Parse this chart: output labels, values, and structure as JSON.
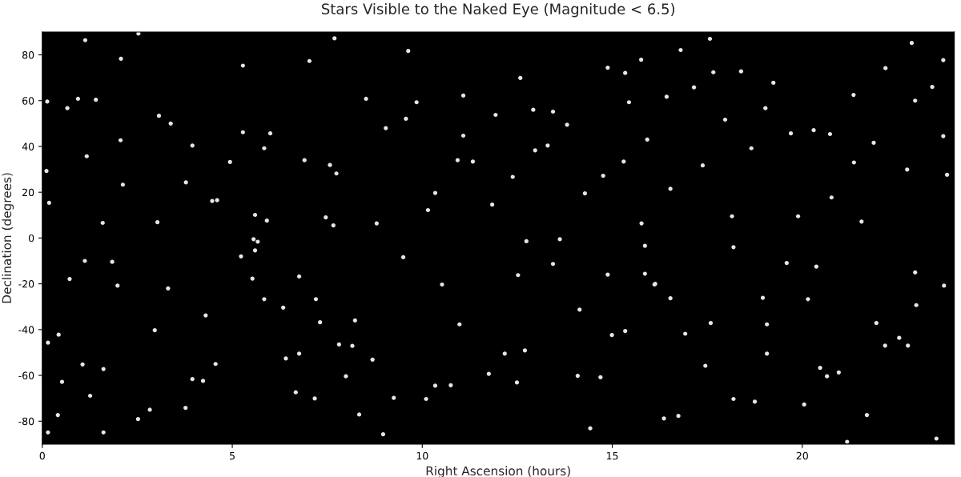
{
  "chart_data": {
    "type": "scatter",
    "title": "Stars Visible to the Naked Eye (Magnitude < 6.5)",
    "xlabel": "Right Ascension (hours)",
    "ylabel": "Declination (degrees)",
    "color": "#e6e6e6",
    "marker": "circle",
    "xlim": [
      0,
      24
    ],
    "ylim": [
      -90,
      90
    ],
    "xticks": [
      0,
      5,
      10,
      15,
      20
    ],
    "yticks": [
      -80,
      -60,
      -40,
      -20,
      0,
      20,
      40,
      60,
      80
    ],
    "x": [
      2.53,
      1.13,
      7.69,
      0.13,
      1.41,
      0.66,
      0.94,
      3.38,
      3.07,
      5.28,
      6.0,
      3.78,
      4.47,
      4.6,
      5.6,
      7.66,
      2.06,
      0.11,
      1.17,
      2.12,
      7.46,
      7.03,
      4.94,
      7.74,
      7.57,
      5.84,
      6.9,
      5.91,
      1.59,
      0.18,
      3.03,
      5.28,
      3.95,
      2.07,
      14.88,
      15.34,
      12.58,
      11.08,
      12.92,
      13.44,
      13.81,
      11.93,
      9.57,
      9.04,
      10.34,
      11.84,
      12.38,
      14.28,
      15.92,
      15.77,
      14.76,
      11.08,
      9.85,
      9.63,
      15.76,
      8.52,
      10.93,
      10.15,
      8.8,
      15.44,
      13.3,
      15.3,
      11.33,
      12.97,
      17.57,
      16.8,
      23.71,
      22.88,
      16.43,
      18.39,
      21.35,
      17.97,
      20.73,
      18.66,
      20.3,
      21.36,
      19.7,
      22.97,
      23.71,
      17.15,
      17.66,
      16.53,
      18.15,
      19.24,
      21.88,
      20.77,
      19.89,
      22.19,
      23.42,
      22.76,
      17.38,
      19.03,
      21.56,
      23.81,
      6.76,
      6.41,
      1.61,
      5.53,
      5.67,
      5.56,
      5.6,
      5.23,
      0.43,
      0.41,
      0.15,
      1.12,
      1.84,
      0.72,
      1.98,
      3.77,
      3.95,
      4.23,
      7.17,
      7.2,
      7.31,
      7.81,
      7.99,
      2.96,
      4.56,
      0.52,
      1.26,
      2.83,
      3.31,
      4.3,
      6.34,
      6.76,
      0.15,
      1.61,
      2.52,
      1.06,
      5.84,
      6.67,
      14.69,
      14.09,
      10.75,
      8.69,
      8.23,
      8.16,
      10.34,
      12.74,
      13.62,
      15.86,
      14.88,
      12.52,
      13.44,
      9.5,
      12.7,
      12.49,
      15.34,
      16.11,
      14.99,
      9.25,
      10.1,
      8.34,
      8.97,
      14.42,
      11.75,
      14.14,
      10.52,
      10.98,
      15.86,
      12.17,
      16.13,
      16.92,
      16.53,
      17.59,
      17.45,
      20.47,
      22.18,
      23.73,
      23.0,
      20.15,
      18.96,
      21.7,
      16.36,
      16.74,
      19.07,
      19.07,
      20.65,
      20.96,
      22.78,
      22.97,
      19.59,
      18.19,
      20.37,
      21.95,
      22.55,
      20.05,
      18.19,
      23.53,
      21.18,
      18.75
    ],
    "values": [
      89.3,
      86.4,
      87.2,
      59.6,
      60.4,
      56.7,
      60.8,
      50.0,
      53.4,
      46.2,
      45.7,
      24.3,
      16.2,
      16.5,
      10.1,
      5.5,
      42.7,
      29.3,
      35.7,
      23.3,
      9.0,
      77.3,
      33.2,
      28.2,
      31.9,
      39.2,
      34.0,
      7.6,
      6.6,
      15.4,
      6.9,
      75.3,
      40.4,
      78.3,
      74.4,
      72.1,
      69.9,
      62.2,
      56.0,
      55.2,
      49.5,
      53.8,
      52.1,
      48.0,
      19.7,
      14.6,
      26.7,
      19.5,
      43.0,
      6.4,
      27.2,
      44.7,
      59.3,
      81.7,
      77.9,
      60.8,
      34.0,
      12.2,
      6.4,
      59.3,
      40.4,
      33.4,
      33.4,
      38.3,
      87.0,
      82.1,
      77.7,
      85.2,
      61.7,
      72.8,
      62.5,
      51.7,
      45.4,
      39.2,
      47.1,
      33.0,
      45.7,
      60.0,
      44.5,
      65.8,
      72.4,
      21.5,
      9.5,
      67.8,
      41.6,
      17.7,
      9.5,
      74.2,
      66.0,
      29.9,
      31.7,
      56.7,
      7.2,
      27.6,
      -16.8,
      -52.6,
      -57.2,
      -17.7,
      -1.6,
      -0.5,
      -5.4,
      -8.0,
      -42.2,
      -77.3,
      -45.7,
      -10.0,
      -10.4,
      -17.9,
      -20.8,
      -74.2,
      -61.6,
      -62.4,
      -70.1,
      -26.7,
      -36.8,
      -46.5,
      -60.4,
      -40.3,
      -55.0,
      -62.8,
      -68.9,
      -75.0,
      -22.0,
      -33.8,
      -30.4,
      -50.5,
      -84.9,
      -84.9,
      -79.1,
      -55.2,
      -26.7,
      -67.4,
      -60.8,
      -60.2,
      -64.3,
      -53.1,
      -36.0,
      -47.1,
      -64.5,
      -1.4,
      -0.5,
      -3.4,
      -16.0,
      -16.2,
      -11.3,
      -8.4,
      -49.1,
      -63.1,
      -40.6,
      -20.3,
      -42.4,
      -69.8,
      -70.3,
      -77.1,
      -85.7,
      -83.1,
      -59.3,
      -31.3,
      -20.3,
      -37.7,
      -15.6,
      -50.5,
      -20.0,
      -41.8,
      -26.3,
      -37.1,
      -55.8,
      -56.7,
      -47.0,
      -20.8,
      -29.3,
      -26.7,
      -26.1,
      -77.3,
      -78.8,
      -77.7,
      -50.5,
      -37.7,
      -60.4,
      -58.7,
      -47.0,
      -15.0,
      -10.9,
      -4.0,
      -12.5,
      -37.1,
      -43.6,
      -72.7,
      -70.3,
      -87.6,
      -89.0,
      -71.5
    ]
  }
}
